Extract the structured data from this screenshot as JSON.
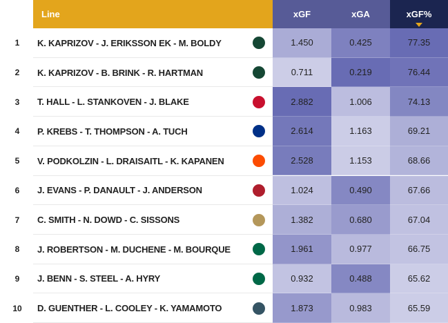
{
  "table": {
    "headers": [
      "Line",
      "xGF",
      "xGA",
      "xGF%"
    ],
    "rows": [
      [
        "1",
        "K. KAPRIZOV - J. ERIKSSON EK - M. BOLDY",
        "1.450",
        "0.425",
        "77.35"
      ],
      [
        "2",
        "K. KAPRIZOV - B. BRINK - R. HARTMAN",
        "0.711",
        "0.219",
        "76.44"
      ],
      [
        "3",
        "T. HALL - L. STANKOVEN - J. BLAKE",
        "2.882",
        "1.006",
        "74.13"
      ],
      [
        "4",
        "P. KREBS - T. THOMPSON - A. TUCH",
        "2.614",
        "1.163",
        "69.21"
      ],
      [
        "5",
        "V. PODKOLZIN - L. DRAISAITL - K. KAPANEN",
        "2.528",
        "1.153",
        "68.66"
      ],
      [
        "6",
        "J. EVANS - P. DANAULT - J. ANDERSON",
        "1.024",
        "0.490",
        "67.66"
      ],
      [
        "7",
        "C. SMITH - N. DOWD - C. SISSONS",
        "1.382",
        "0.680",
        "67.04"
      ],
      [
        "8",
        "J. ROBERTSON - M. DUCHENE - M. BOURQUE",
        "1.961",
        "0.977",
        "66.75"
      ],
      [
        "9",
        "J. BENN - S. STEEL - A. HYRY",
        "0.932",
        "0.488",
        "65.62"
      ],
      [
        "10",
        "D. GUENTHER - L. COOLEY - K. YAMAMOTO",
        "1.873",
        "0.983",
        "65.59"
      ]
    ]
  }
}
